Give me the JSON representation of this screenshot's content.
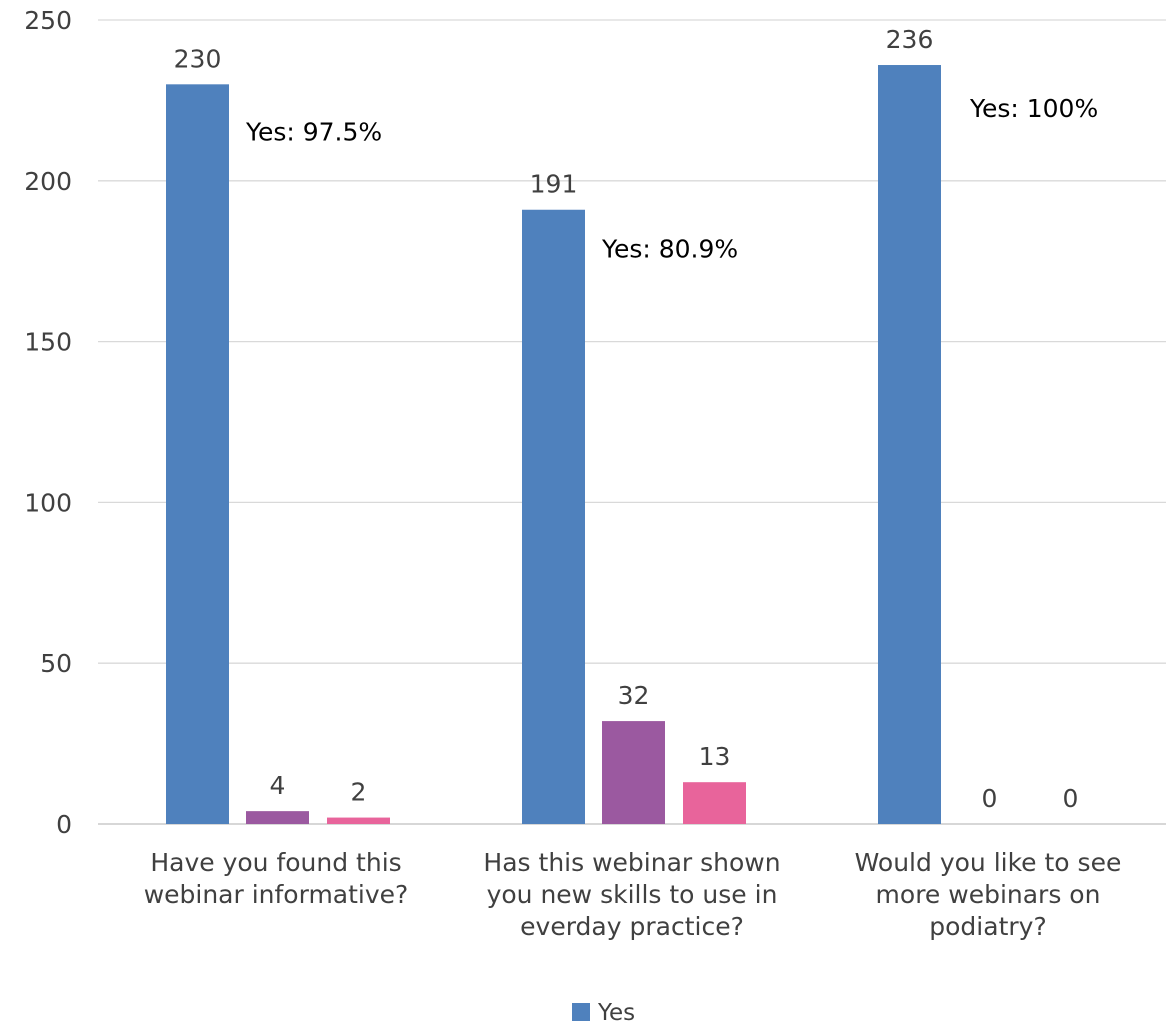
{
  "chart_data": {
    "type": "bar",
    "categories": [
      "Have you found this webinar informative?",
      "Has this webinar shown you new skills to use in everday practice?",
      "Would you like to see more webinars on podiatry?"
    ],
    "category_lines": [
      [
        "Have you found this",
        "webinar informative?"
      ],
      [
        "Has this webinar shown",
        "you new skills to use in",
        "everday practice?"
      ],
      [
        "Would you like to see",
        "more webinars on",
        "podiatry?"
      ]
    ],
    "series": [
      {
        "name": "Yes",
        "color": "#4F81BD",
        "values": [
          230,
          191,
          236
        ]
      },
      {
        "color": "#9B59A0",
        "values": [
          4,
          32,
          0
        ]
      },
      {
        "color": "#E8649B",
        "values": [
          2,
          13,
          0
        ]
      }
    ],
    "data_labels": [
      [
        "230",
        "191",
        "236"
      ],
      [
        "4",
        "32",
        "0"
      ],
      [
        "2",
        "13",
        "0"
      ]
    ],
    "annotations": [
      "Yes: 97.5%",
      "Yes: 80.9%",
      "Yes: 100%"
    ],
    "ylim": [
      0,
      250
    ],
    "yticks": [
      0,
      50,
      100,
      150,
      200,
      250
    ],
    "grid": true,
    "legend_position": "bottom",
    "legend": [
      {
        "name": "Yes",
        "color": "#4F81BD"
      }
    ]
  }
}
